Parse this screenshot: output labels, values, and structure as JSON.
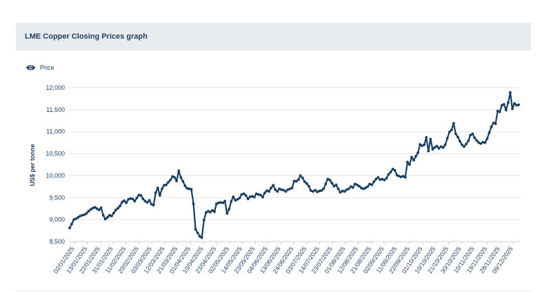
{
  "header": {
    "title": "LME Copper Closing Prices graph"
  },
  "legend": {
    "label": "Price",
    "icon": "eye-icon"
  },
  "colors": {
    "line": "#173c5f",
    "grid": "#e3e6e9",
    "header_bg": "#e9ecef"
  },
  "chart_data": {
    "type": "line",
    "title": "LME Copper Closing Prices graph",
    "ylabel": "US$ per tonne",
    "xlabel": "",
    "ylim": [
      8500,
      12000
    ],
    "yticks": [
      8500,
      9000,
      9500,
      10000,
      10500,
      11000,
      11500,
      12000
    ],
    "ytick_labels": [
      "8,500",
      "9,000",
      "9,500",
      "10,000",
      "10,500",
      "11,000",
      "11,500",
      "12,000"
    ],
    "xtick_labels": [
      "02/01/2025",
      "13/01/2025",
      "22/01/2025",
      "31/01/2025",
      "11/02/2025",
      "20/02/2025",
      "03/03/2025",
      "12/03/2025",
      "21/03/2025",
      "01/04/2025",
      "10/04/2025",
      "23/04/2025",
      "02/05/2025",
      "14/05/2025",
      "23/05/2025",
      "04/06/2025",
      "13/06/2025",
      "24/06/2025",
      "03/07/2025",
      "14/07/2025",
      "23/07/2025",
      "01/08/2025",
      "12/08/2025",
      "21/08/2025",
      "02/09/2025",
      "11/09/2025",
      "22/09/2025",
      "01/10/2025",
      "10/10/2025",
      "21/10/2025",
      "30/10/2025",
      "10/11/2025",
      "19/11/2025",
      "28/11/2025",
      "09/12/2025"
    ],
    "legend": "top-left",
    "grid": true,
    "series": [
      {
        "name": "Price",
        "values": [
          8810,
          8900,
          9000,
          9020,
          9050,
          9080,
          9100,
          9110,
          9140,
          9190,
          9230,
          9260,
          9280,
          9250,
          9220,
          9270,
          9100,
          9010,
          9050,
          9100,
          9080,
          9150,
          9220,
          9260,
          9310,
          9400,
          9430,
          9380,
          9460,
          9480,
          9470,
          9420,
          9490,
          9560,
          9550,
          9470,
          9420,
          9390,
          9440,
          9350,
          9330,
          9610,
          9720,
          9550,
          9700,
          9780,
          9790,
          9850,
          9900,
          9980,
          9960,
          9880,
          10110,
          9960,
          9870,
          9770,
          9710,
          9700,
          9690,
          9360,
          8780,
          8700,
          8620,
          8590,
          8990,
          9160,
          9190,
          9170,
          9210,
          9180,
          9360,
          9380,
          9390,
          9380,
          9420,
          9140,
          9240,
          9410,
          9520,
          9440,
          9460,
          9490,
          9570,
          9590,
          9550,
          9470,
          9520,
          9530,
          9510,
          9590,
          9570,
          9560,
          9510,
          9610,
          9660,
          9640,
          9720,
          9780,
          9680,
          9640,
          9700,
          9680,
          9670,
          9640,
          9680,
          9700,
          9720,
          9880,
          9870,
          9910,
          10000,
          9950,
          9860,
          9820,
          9760,
          9660,
          9640,
          9670,
          9630,
          9650,
          9660,
          9700,
          9810,
          9920,
          9900,
          9830,
          9760,
          9790,
          9700,
          9620,
          9650,
          9640,
          9680,
          9700,
          9750,
          9730,
          9810,
          9790,
          9760,
          9720,
          9700,
          9720,
          9750,
          9810,
          9790,
          9860,
          9920,
          9960,
          9910,
          9920,
          9900,
          9940,
          10030,
          10080,
          10150,
          10120,
          10010,
          9990,
          9970,
          9990,
          9960,
          10310,
          10250,
          10420,
          10350,
          10440,
          10520,
          10710,
          10680,
          10700,
          10870,
          10560,
          10830,
          10600,
          10640,
          10670,
          10620,
          10660,
          10640,
          10700,
          10850,
          10990,
          11040,
          11190,
          10950,
          10880,
          10780,
          10700,
          10660,
          10720,
          10790,
          10920,
          10950,
          10860,
          10800,
          10750,
          10730,
          10760,
          10750,
          10840,
          10980,
          11110,
          11200,
          11180,
          11470,
          11450,
          11600,
          11620,
          11490,
          11660,
          11890,
          11520,
          11640,
          11600,
          11610
        ]
      }
    ]
  }
}
